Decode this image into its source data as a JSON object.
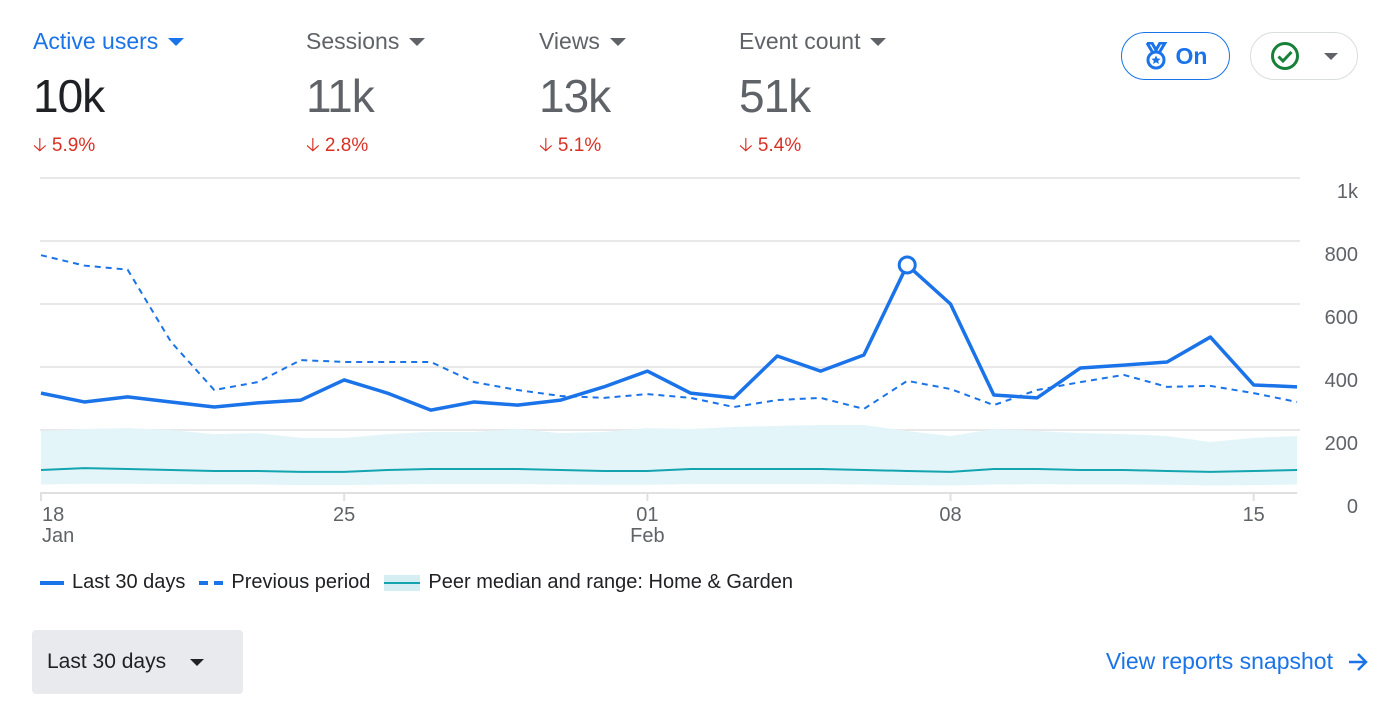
{
  "metrics": [
    {
      "label": "Active users",
      "value": "10k",
      "change": "5.9%",
      "active": true
    },
    {
      "label": "Sessions",
      "value": "11k",
      "change": "2.8%"
    },
    {
      "label": "Views",
      "value": "13k",
      "change": "5.1%"
    },
    {
      "label": "Event count",
      "value": "51k",
      "change": "5.4%"
    }
  ],
  "benchmark_toggle": {
    "label": "On",
    "icon": "medal-icon"
  },
  "status_button": {
    "icon": "check-circle-icon"
  },
  "colors": {
    "primary": "#1a73e8",
    "negative": "#d93025",
    "peer_line": "#12a4af",
    "peer_band": "#e4f5f9",
    "status_ok": "#188038"
  },
  "chart_data": {
    "type": "line",
    "y_ticks": [
      "0",
      "200",
      "400",
      "600",
      "800",
      "1k"
    ],
    "ylim": [
      0,
      1000
    ],
    "x_ticks": [
      {
        "index": 0,
        "day": "18",
        "month": "Jan"
      },
      {
        "index": 7,
        "day": "25",
        "month": ""
      },
      {
        "index": 14,
        "day": "01",
        "month": "Feb"
      },
      {
        "index": 21,
        "day": "08",
        "month": ""
      },
      {
        "index": 28,
        "day": "15",
        "month": ""
      }
    ],
    "highlight_index": 20,
    "series": [
      {
        "name": "Last 30 days",
        "style": "solid",
        "values": [
          317,
          289,
          305,
          289,
          273,
          286,
          295,
          359,
          317,
          263,
          289,
          279,
          295,
          337,
          387,
          317,
          302,
          435,
          387,
          438,
          724,
          600,
          311,
          302,
          397,
          406,
          416,
          495,
          343,
          337
        ]
      },
      {
        "name": "Previous period",
        "style": "dashed",
        "values": [
          755,
          722,
          709,
          480,
          327,
          352,
          422,
          416,
          416,
          416,
          352,
          327,
          308,
          302,
          314,
          302,
          273,
          295,
          302,
          267,
          356,
          330,
          279,
          327,
          352,
          375,
          337,
          340,
          317,
          289
        ]
      },
      {
        "name": "Peer median and range: Home & Garden",
        "style": "band",
        "median": [
          73,
          79,
          76,
          73,
          70,
          70,
          67,
          67,
          73,
          76,
          76,
          76,
          73,
          70,
          70,
          76,
          76,
          76,
          76,
          73,
          70,
          67,
          76,
          76,
          73,
          73,
          70,
          67,
          70,
          73
        ],
        "upper": [
          197,
          203,
          206,
          200,
          187,
          190,
          175,
          175,
          187,
          194,
          194,
          203,
          190,
          194,
          206,
          203,
          210,
          213,
          216,
          216,
          197,
          181,
          203,
          197,
          190,
          187,
          181,
          162,
          175,
          181
        ],
        "lower": [
          27,
          29,
          29,
          28,
          27,
          27,
          25,
          25,
          27,
          28,
          28,
          28,
          27,
          26,
          26,
          28,
          28,
          28,
          28,
          27,
          25,
          24,
          27,
          28,
          27,
          27,
          26,
          24,
          25,
          27
        ]
      }
    ]
  },
  "range_button": {
    "label": "Last 30 days"
  },
  "snapshot_link": {
    "label": "View reports snapshot"
  }
}
